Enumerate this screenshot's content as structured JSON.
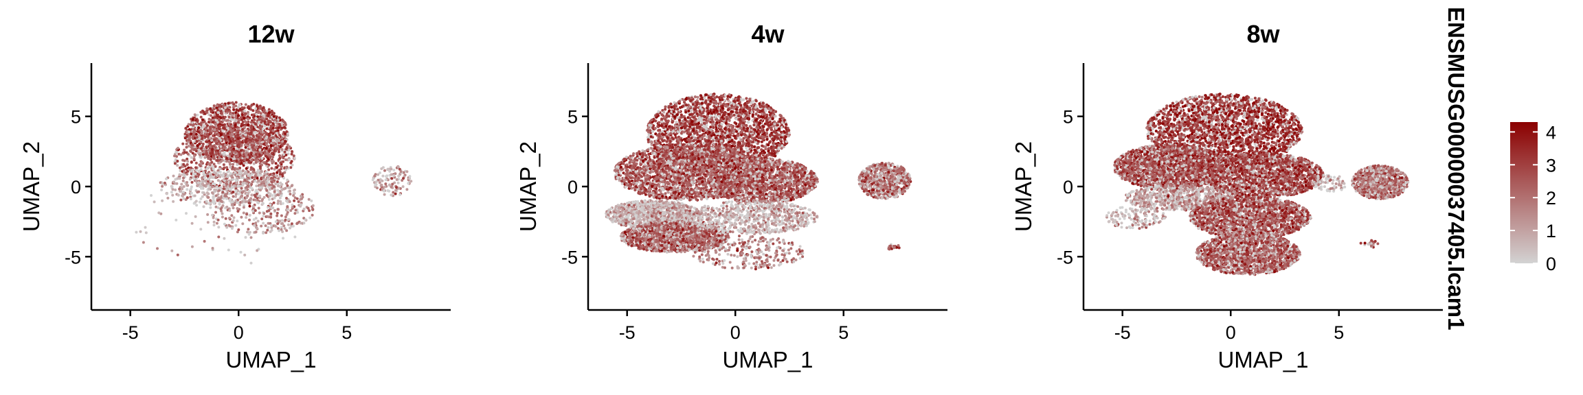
{
  "chart_data": {
    "type": "scatter",
    "color_scale": {
      "title": "ENSMUSG00000037405.Icam1",
      "low_color": "#d3d3d3",
      "high_color": "#8b0000",
      "range": [
        0,
        4.3
      ],
      "ticks": [
        0,
        1,
        2,
        3,
        4
      ],
      "tick_labels": [
        "0",
        "1",
        "2",
        "3",
        "4"
      ]
    },
    "panels": [
      {
        "title": "12w",
        "xlabel": "UMAP_1",
        "ylabel": "UMAP_2",
        "xlim": [
          -6.8,
          9.8
        ],
        "ylim": [
          -8.8,
          8.8
        ],
        "xticks": [
          -5,
          0,
          5
        ],
        "xtick_labels": [
          "-5",
          "0",
          "5"
        ],
        "yticks": [
          -5,
          0,
          5
        ],
        "ytick_labels": [
          "-5",
          "0",
          "5"
        ],
        "clusters": [
          {
            "cx": -0.1,
            "cy": 3.8,
            "rx": 2.4,
            "ry": 2.2,
            "n": 1400,
            "expr": 2.8
          },
          {
            "cx": -0.2,
            "cy": 2.0,
            "rx": 2.8,
            "ry": 2.2,
            "n": 800,
            "expr": 2.4
          },
          {
            "cx": -0.6,
            "cy": 0.0,
            "rx": 3.1,
            "ry": 1.3,
            "n": 450,
            "expr": 1.0
          },
          {
            "cx": 1.0,
            "cy": -1.6,
            "rx": 2.5,
            "ry": 1.8,
            "n": 300,
            "expr": 1.5
          },
          {
            "cx": 7.1,
            "cy": 0.4,
            "rx": 0.9,
            "ry": 1.1,
            "n": 110,
            "expr": 1.2
          },
          {
            "cx": -1.0,
            "cy": -2.5,
            "rx": 4.0,
            "ry": 3.5,
            "n": 70,
            "expr": 0.8
          }
        ]
      },
      {
        "title": "4w",
        "xlabel": "UMAP_1",
        "ylabel": "UMAP_2",
        "xlim": [
          -6.8,
          9.8
        ],
        "ylim": [
          -8.8,
          8.8
        ],
        "xticks": [
          -5,
          0,
          5
        ],
        "xtick_labels": [
          "-5",
          "0",
          "5"
        ],
        "yticks": [
          -5,
          0,
          5
        ],
        "ytick_labels": [
          "-5",
          "0",
          "5"
        ],
        "clusters": [
          {
            "cx": -0.8,
            "cy": 3.8,
            "rx": 3.3,
            "ry": 2.8,
            "n": 3400,
            "expr": 3.0
          },
          {
            "cx": -2.2,
            "cy": 1.0,
            "rx": 3.4,
            "ry": 2.0,
            "n": 2300,
            "expr": 2.6
          },
          {
            "cx": 1.3,
            "cy": 0.4,
            "rx": 2.5,
            "ry": 1.6,
            "n": 1500,
            "expr": 2.5
          },
          {
            "cx": -3.8,
            "cy": -2.0,
            "rx": 2.2,
            "ry": 1.0,
            "n": 1000,
            "expr": 0.9
          },
          {
            "cx": -2.8,
            "cy": -3.6,
            "rx": 2.5,
            "ry": 1.1,
            "n": 1300,
            "expr": 2.3
          },
          {
            "cx": 0.8,
            "cy": -2.2,
            "rx": 3.0,
            "ry": 1.2,
            "n": 700,
            "expr": 0.8
          },
          {
            "cx": 0.6,
            "cy": -4.7,
            "rx": 2.6,
            "ry": 1.2,
            "n": 260,
            "expr": 1.8
          },
          {
            "cx": 6.9,
            "cy": 0.4,
            "rx": 1.2,
            "ry": 1.3,
            "n": 650,
            "expr": 2.0
          },
          {
            "cx": 7.3,
            "cy": -4.3,
            "rx": 0.3,
            "ry": 0.25,
            "n": 18,
            "expr": 2.5
          }
        ]
      },
      {
        "title": "8w",
        "xlabel": "UMAP_1",
        "ylabel": "UMAP_2",
        "xlim": [
          -6.8,
          9.8
        ],
        "ylim": [
          -8.8,
          8.8
        ],
        "xticks": [
          -5,
          0,
          5
        ],
        "xtick_labels": [
          "-5",
          "0",
          "5"
        ],
        "yticks": [
          -5,
          0,
          5
        ],
        "ytick_labels": [
          "-5",
          "0",
          "5"
        ],
        "clusters": [
          {
            "cx": -0.3,
            "cy": 4.0,
            "rx": 3.6,
            "ry": 2.6,
            "n": 3900,
            "expr": 3.2
          },
          {
            "cx": -2.8,
            "cy": 1.4,
            "rx": 2.6,
            "ry": 1.6,
            "n": 1900,
            "expr": 2.7
          },
          {
            "cx": 1.5,
            "cy": 0.8,
            "rx": 2.8,
            "ry": 1.6,
            "n": 1600,
            "expr": 2.8
          },
          {
            "cx": -2.4,
            "cy": -0.8,
            "rx": 2.5,
            "ry": 0.9,
            "n": 650,
            "expr": 1.2
          },
          {
            "cx": 0.9,
            "cy": -2.2,
            "rx": 2.8,
            "ry": 1.5,
            "n": 1600,
            "expr": 2.6
          },
          {
            "cx": 0.8,
            "cy": -4.8,
            "rx": 2.4,
            "ry": 1.5,
            "n": 1500,
            "expr": 2.4
          },
          {
            "cx": 6.9,
            "cy": 0.3,
            "rx": 1.3,
            "ry": 1.2,
            "n": 750,
            "expr": 2.0
          },
          {
            "cx": 4.6,
            "cy": 0.2,
            "rx": 0.8,
            "ry": 0.6,
            "n": 60,
            "expr": 0.8
          },
          {
            "cx": 6.4,
            "cy": -4.1,
            "rx": 0.4,
            "ry": 0.3,
            "n": 22,
            "expr": 2.5
          },
          {
            "cx": -4.4,
            "cy": -2.2,
            "rx": 1.4,
            "ry": 0.8,
            "n": 140,
            "expr": 0.7
          }
        ]
      }
    ]
  }
}
